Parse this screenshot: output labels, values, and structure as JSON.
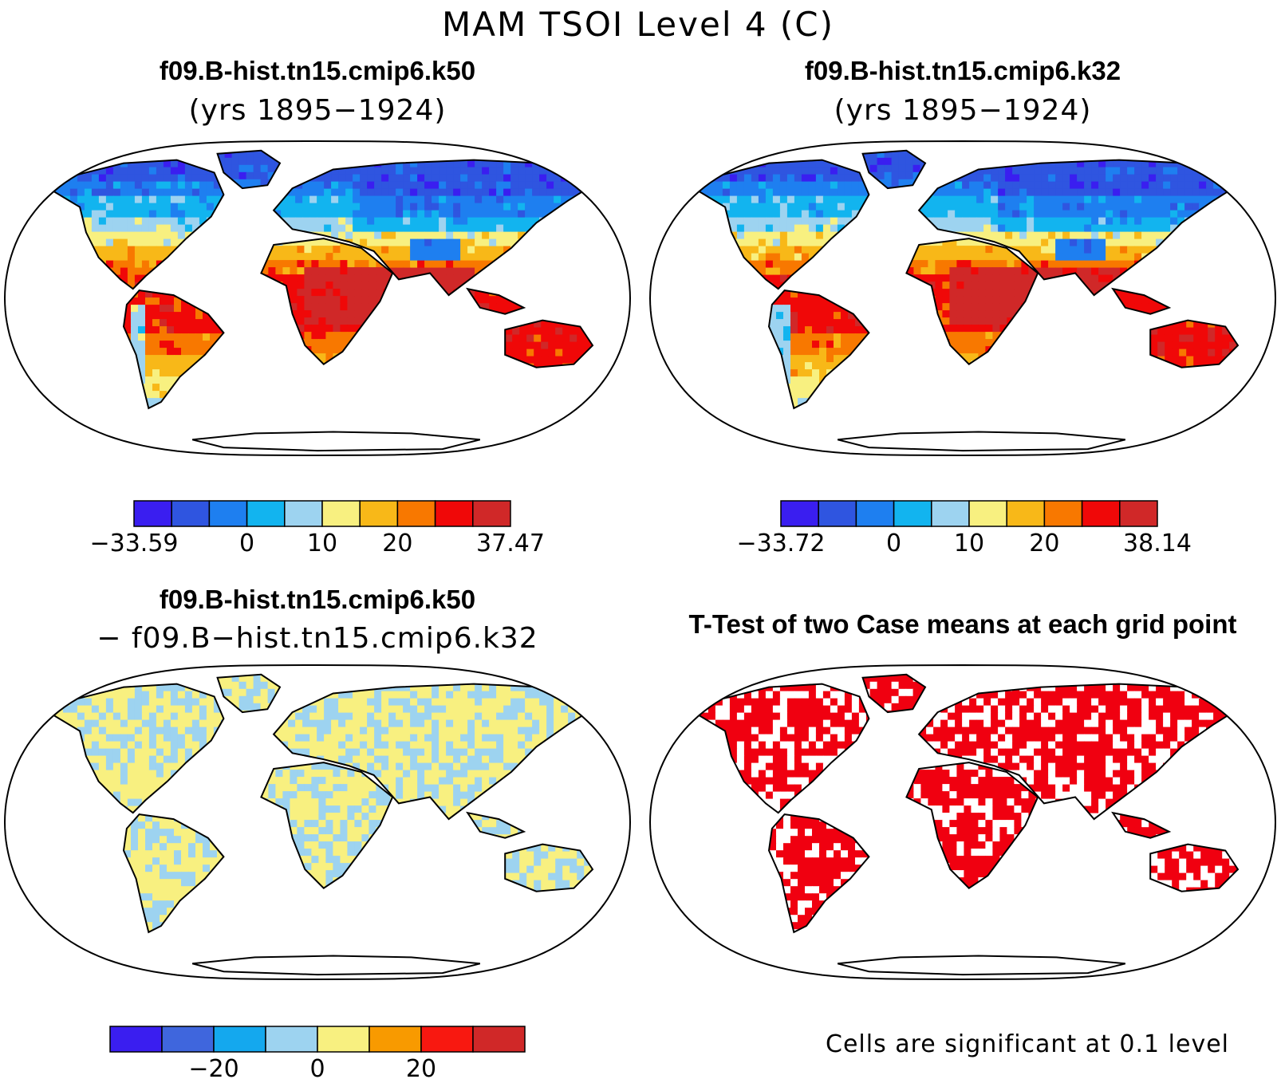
{
  "figure": {
    "title": "MAM TSOI Level 4 (C)"
  },
  "panels": [
    {
      "id": "case1",
      "title": "f09.B-hist.tn15.cmip6.k50",
      "subtitle": "(yrs 1895−1924)",
      "palette": [
        "#3a1ef0",
        "#2f55e0",
        "#1e7ff0",
        "#12b4ef",
        "#9dd3f0",
        "#f8f080",
        "#f8b818",
        "#f87800",
        "#f00808",
        "#d02828"
      ],
      "colorbar_ticks": [
        "−33.59",
        "0",
        "10",
        "20",
        "37.47"
      ]
    },
    {
      "id": "case2",
      "title": "f09.B-hist.tn15.cmip6.k32",
      "subtitle": "(yrs 1895−1924)",
      "palette": [
        "#3a1ef0",
        "#2f55e0",
        "#1e7ff0",
        "#12b4ef",
        "#9dd3f0",
        "#f8f080",
        "#f8b818",
        "#f87800",
        "#f00808",
        "#d02828"
      ],
      "colorbar_ticks": [
        "−33.72",
        "0",
        "10",
        "20",
        "38.14"
      ]
    },
    {
      "id": "difference",
      "title": "f09.B-hist.tn15.cmip6.k50",
      "subtitle": "− f09.B−hist.tn15.cmip6.k32",
      "palette": [
        "#3a1ef0",
        "#3f66dd",
        "#14a8ee",
        "#9dd3f0",
        "#f8f080",
        "#f89a00",
        "#f81810",
        "#d02828"
      ],
      "colorbar_ticks": [
        "−20",
        "0",
        "20"
      ]
    },
    {
      "id": "ttest",
      "title": "T-Test of two Case means at each grid point",
      "significance_color": "#f00010",
      "note": "Cells are significant at 0.1 level"
    }
  ]
}
